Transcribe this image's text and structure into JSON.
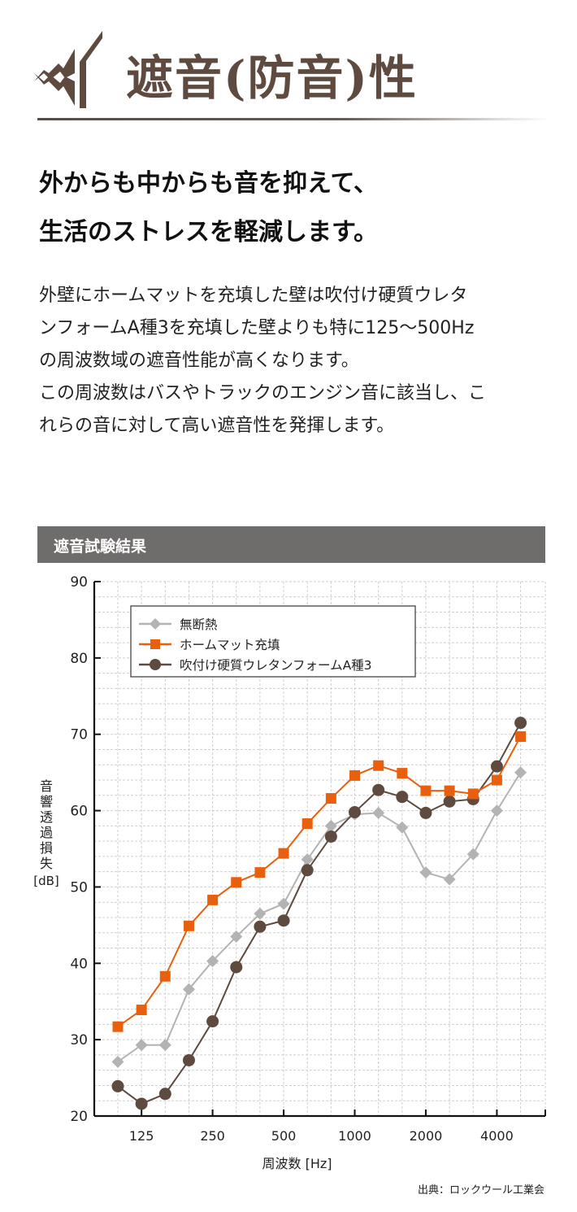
{
  "header": {
    "title": "遮音(防音)性",
    "icon": "sound-barrier-icon",
    "color": "#5e4a3e"
  },
  "lead": {
    "lines": [
      "外からも中からも音を抑えて、",
      "生活のストレスを軽減します。"
    ]
  },
  "body": {
    "lines": [
      "外壁にホームマットを充填した壁は吹付け硬質ウレタ",
      "ンフォームA種3を充填した壁よりも特に125～500Hz",
      "の周波数域の遮音性能が高くなります。",
      "この周波数はバスやトラックのエンジン音に該当し、こ",
      "れらの音に対して高い遮音性を発揮します。"
    ]
  },
  "section": {
    "title": "遮音試験結果",
    "bar_color": "#6f6c6c"
  },
  "chart_data": {
    "type": "line",
    "title": "遮音試験結果",
    "xlabel": "周波数 [Hz]",
    "ylabel_chars": [
      "音",
      "響",
      "透",
      "過",
      "損",
      "失"
    ],
    "ylabel_unit": "[dB]",
    "ylim": [
      20,
      90
    ],
    "yticks": [
      20,
      30,
      40,
      50,
      60,
      70,
      80,
      90
    ],
    "x": [
      100,
      125,
      160,
      200,
      250,
      315,
      400,
      500,
      630,
      800,
      1000,
      1250,
      1600,
      2000,
      2500,
      3150,
      4000,
      5000
    ],
    "xtick_labels": [
      "125",
      "250",
      "500",
      "1000",
      "2000",
      "4000"
    ],
    "xtick_values": [
      125,
      250,
      500,
      1000,
      2000,
      4000
    ],
    "grid": true,
    "legend_position": "top-left",
    "series": [
      {
        "name": "無断熱",
        "marker": "diamond",
        "color": "#b3b3b3",
        "values": [
          27.1,
          29.3,
          29.3,
          36.6,
          40.3,
          43.5,
          46.5,
          47.8,
          53.6,
          58.0,
          59.5,
          59.7,
          57.8,
          51.9,
          51.0,
          54.3,
          60.0,
          65.0
        ]
      },
      {
        "name": "ホームマット充填",
        "marker": "square",
        "color": "#e8600e",
        "values": [
          31.7,
          33.9,
          38.3,
          44.9,
          48.3,
          50.6,
          51.9,
          54.4,
          58.3,
          61.6,
          64.6,
          65.9,
          64.9,
          62.6,
          62.6,
          62.2,
          64.0,
          69.7
        ]
      },
      {
        "name": "吹付け硬質ウレタンフォームA種3",
        "marker": "circle",
        "color": "#5e4a3e",
        "values": [
          23.9,
          21.6,
          22.9,
          27.3,
          32.4,
          39.5,
          44.8,
          45.6,
          52.2,
          56.6,
          59.8,
          62.7,
          61.8,
          59.7,
          61.2,
          61.5,
          65.8,
          71.5
        ]
      }
    ]
  },
  "footer": {
    "source": "出典：ロックウール工業会"
  }
}
